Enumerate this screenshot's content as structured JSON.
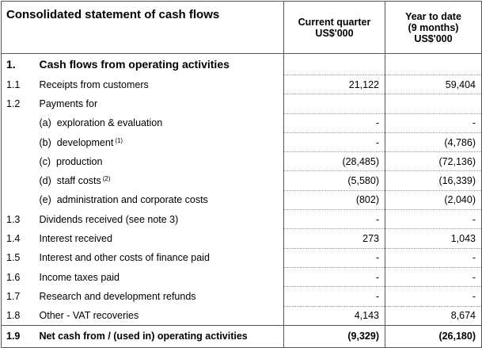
{
  "header": {
    "title": "Consolidated statement of cash flows",
    "col_current": [
      "Current quarter",
      "US$'000"
    ],
    "col_ytd": [
      "Year to date",
      "(9 months)",
      "US$'000"
    ]
  },
  "rows": [
    {
      "num": "1.",
      "label": "Cash flows from operating activities",
      "note": "",
      "cq": "",
      "ytd": "",
      "kind": "section"
    },
    {
      "num": "1.1",
      "label": "Receipts from customers",
      "note": "",
      "cq": "21,122",
      "ytd": "59,404",
      "kind": "row"
    },
    {
      "num": "1.2",
      "label": "Payments for",
      "note": "",
      "cq": "",
      "ytd": "",
      "kind": "row"
    },
    {
      "num": "",
      "label": "(a)  exploration & evaluation",
      "note": "",
      "cq": "-",
      "ytd": "-",
      "kind": "sub"
    },
    {
      "num": "",
      "label": "(b)  development",
      "note": "(1)",
      "cq": "-",
      "ytd": "(4,786)",
      "kind": "sub"
    },
    {
      "num": "",
      "label": "(c)  production",
      "note": "",
      "cq": "(28,485)",
      "ytd": "(72,136)",
      "kind": "sub"
    },
    {
      "num": "",
      "label": "(d)  staff costs",
      "note": "(2)",
      "cq": "(5,580)",
      "ytd": "(16,339)",
      "kind": "sub"
    },
    {
      "num": "",
      "label": "(e)  administration and corporate costs",
      "note": "",
      "cq": "(802)",
      "ytd": "(2,040)",
      "kind": "sub"
    },
    {
      "num": "1.3",
      "label": "Dividends received (see note 3)",
      "note": "",
      "cq": "-",
      "ytd": "-",
      "kind": "row"
    },
    {
      "num": "1.4",
      "label": "Interest received",
      "note": "",
      "cq": "273",
      "ytd": "1,043",
      "kind": "row"
    },
    {
      "num": "1.5",
      "label": "Interest and other costs of finance paid",
      "note": "",
      "cq": "-",
      "ytd": "-",
      "kind": "row"
    },
    {
      "num": "1.6",
      "label": "Income taxes paid",
      "note": "",
      "cq": "-",
      "ytd": "-",
      "kind": "row"
    },
    {
      "num": "1.7",
      "label": "Research and development refunds",
      "note": "",
      "cq": "-",
      "ytd": "-",
      "kind": "row"
    },
    {
      "num": "1.8",
      "label": "Other - VAT recoveries",
      "note": "",
      "cq": "4,143",
      "ytd": "8,674",
      "kind": "row"
    },
    {
      "num": "1.9",
      "label": "Net cash from / (used in) operating activities",
      "note": "",
      "cq": "(9,329)",
      "ytd": "(26,180)",
      "kind": "total"
    }
  ]
}
